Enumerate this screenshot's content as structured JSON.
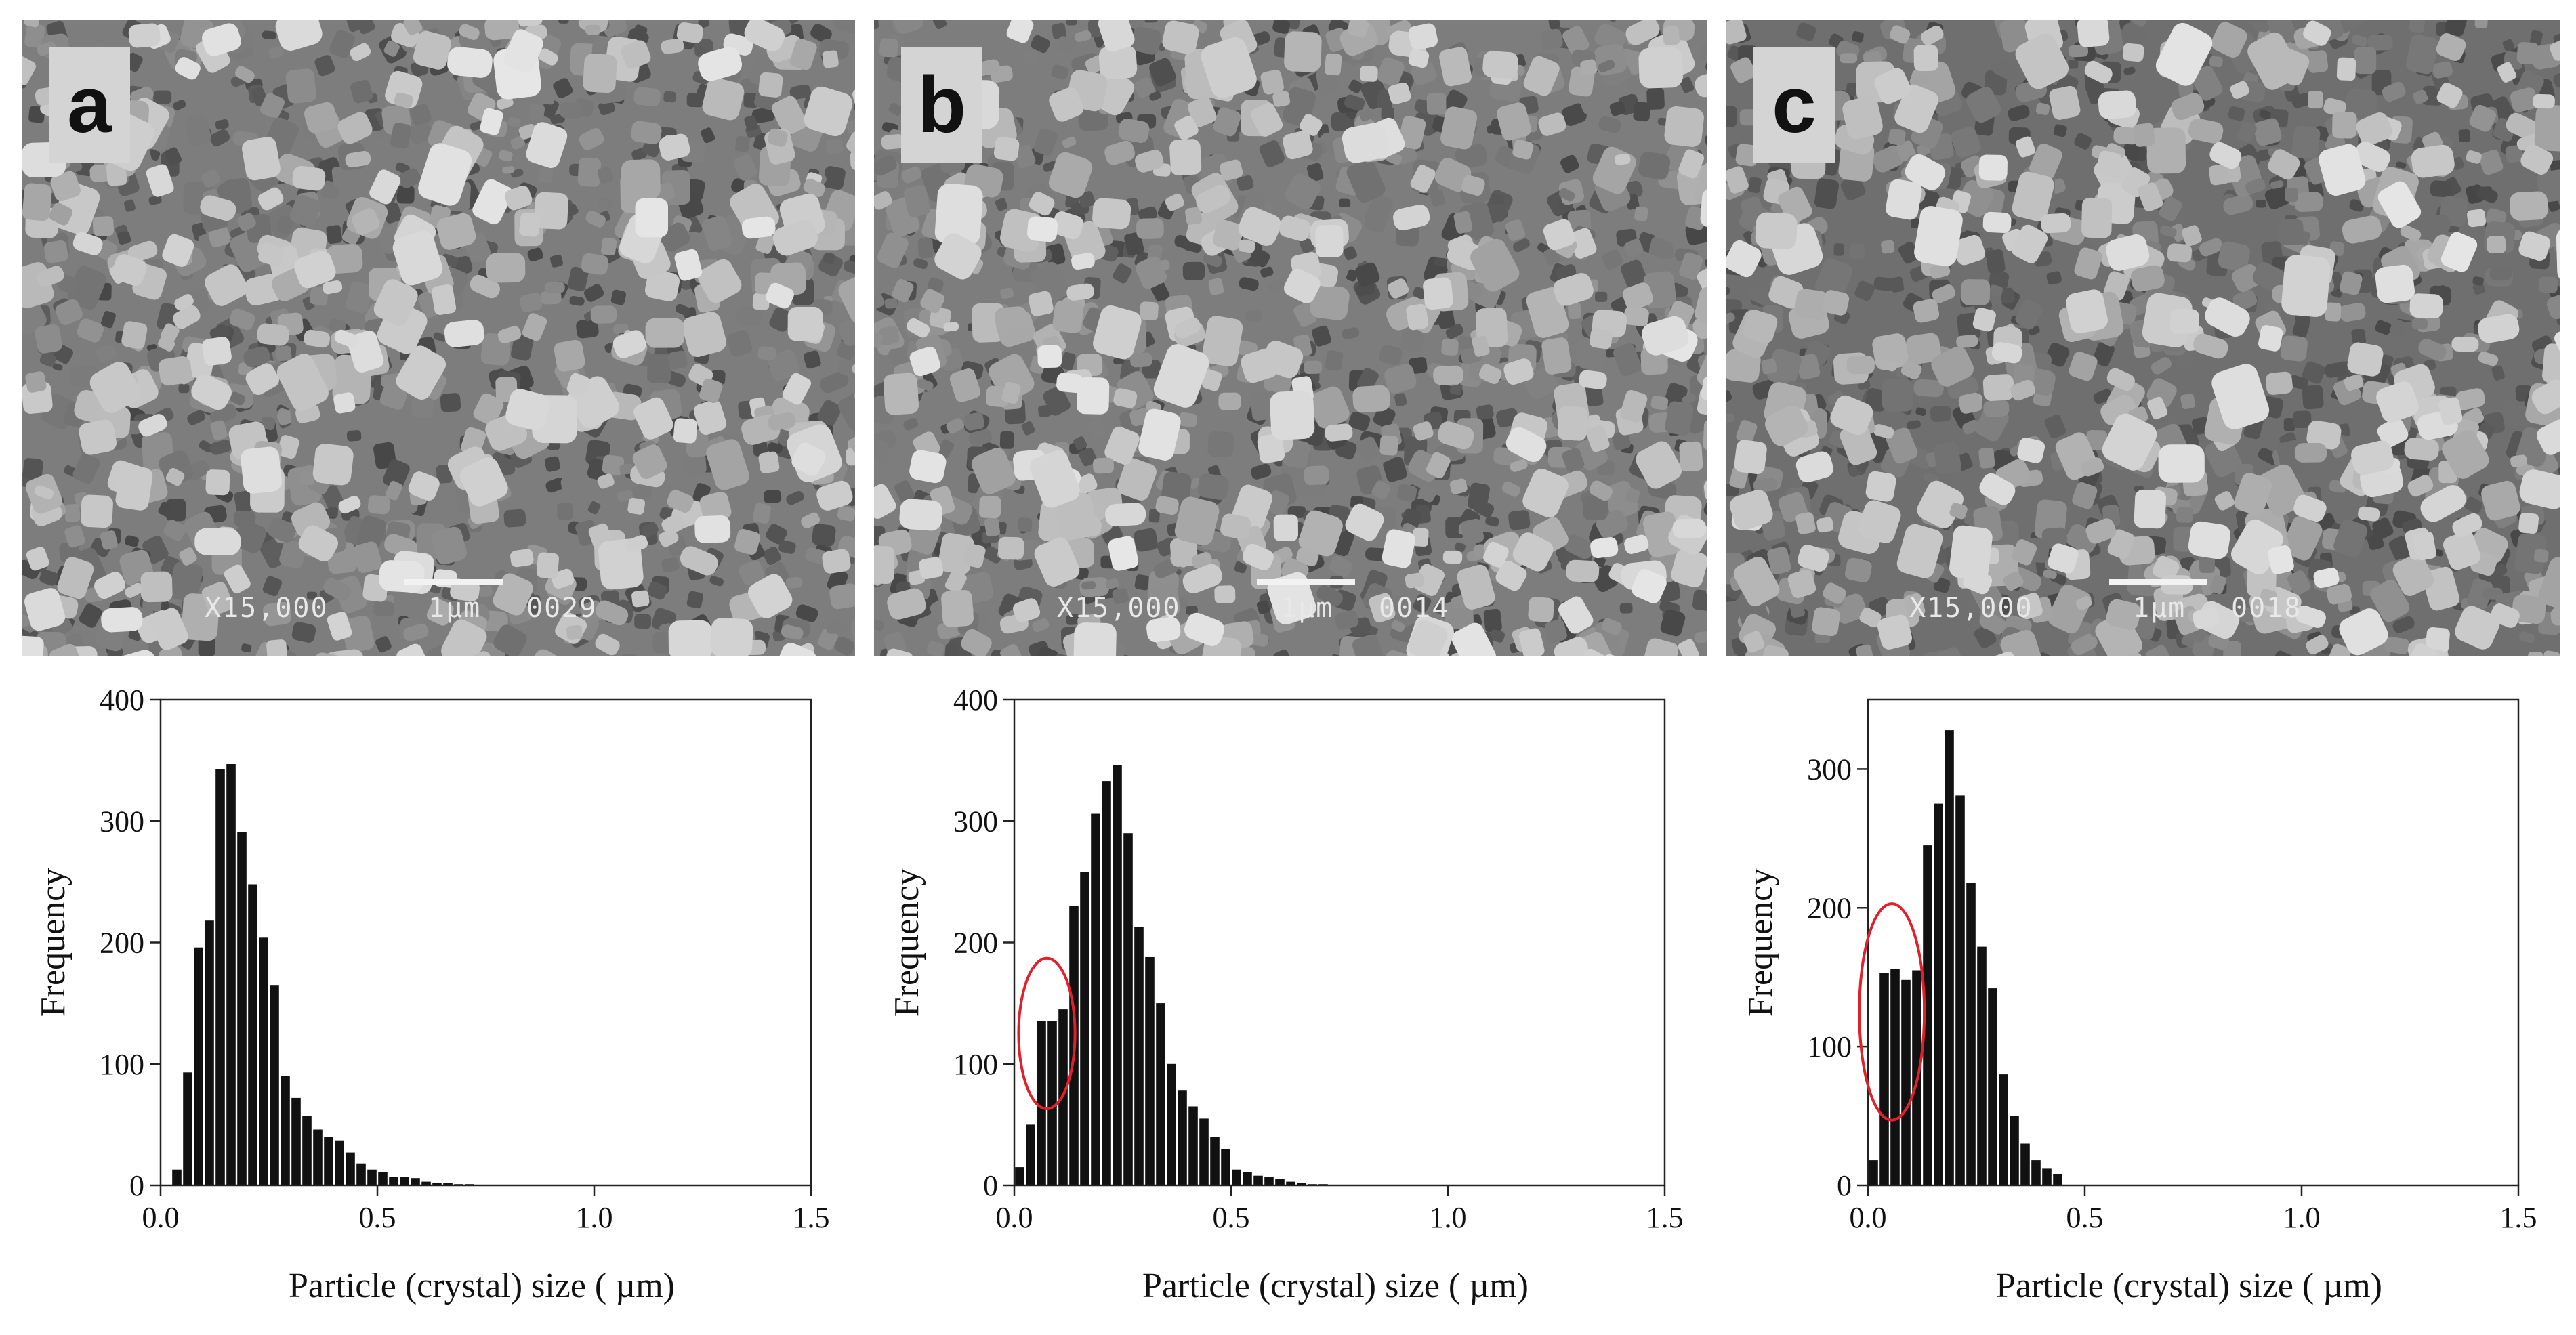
{
  "panels": [
    {
      "letter": "a",
      "sem_magnification": "X15,000",
      "sem_scale": "1µm",
      "sem_id": "0029",
      "highlight": null
    },
    {
      "letter": "b",
      "sem_magnification": "X15,000",
      "sem_scale": "1µm",
      "sem_id": "0014",
      "highlight": {
        "x_center": 0.075,
        "y_center": 125,
        "x_radius": 0.065,
        "y_radius": 62,
        "color": "#e0202a"
      }
    },
    {
      "letter": "c",
      "sem_magnification": "X15,000",
      "sem_scale": "1µm",
      "sem_id": "0018",
      "highlight": {
        "x_center": 0.055,
        "y_center": 125,
        "x_radius": 0.075,
        "y_radius": 78,
        "color": "#e0202a"
      }
    }
  ],
  "chart_data": [
    {
      "type": "bar",
      "panel": "a",
      "xlabel": "Particle (crystal) size ( µm)",
      "ylabel": "Frequency",
      "xlim": [
        0.0,
        1.5
      ],
      "ylim": [
        0,
        400
      ],
      "xticks": [
        "0.0",
        "0.5",
        "1.0",
        "1.5"
      ],
      "yticks": [
        "0",
        "100",
        "200",
        "300",
        "400"
      ],
      "bin_width": 0.025,
      "x": [
        0.0375,
        0.0625,
        0.0875,
        0.1125,
        0.1375,
        0.1625,
        0.1875,
        0.2125,
        0.2375,
        0.2625,
        0.2875,
        0.3125,
        0.3375,
        0.3625,
        0.3875,
        0.4125,
        0.4375,
        0.4625,
        0.4875,
        0.5125,
        0.5375,
        0.5625,
        0.5875,
        0.6125,
        0.6375,
        0.6625,
        0.6875,
        0.7125
      ],
      "values": [
        13,
        93,
        196,
        218,
        343,
        347,
        291,
        248,
        204,
        165,
        90,
        72,
        57,
        46,
        40,
        37,
        27,
        18,
        13,
        11,
        7,
        7,
        6,
        3,
        2,
        2,
        1,
        1
      ],
      "grid": false,
      "legend": null
    },
    {
      "type": "bar",
      "panel": "b",
      "xlabel": "Particle (crystal) size ( µm)",
      "ylabel": "Frequency",
      "xlim": [
        0.0,
        1.5
      ],
      "ylim": [
        0,
        400
      ],
      "xticks": [
        "0.0",
        "0.5",
        "1.0",
        "1.5"
      ],
      "yticks": [
        "0",
        "100",
        "200",
        "300",
        "400"
      ],
      "bin_width": 0.025,
      "x": [
        0.0125,
        0.0375,
        0.0625,
        0.0875,
        0.1125,
        0.1375,
        0.1625,
        0.1875,
        0.2125,
        0.2375,
        0.2625,
        0.2875,
        0.3125,
        0.3375,
        0.3625,
        0.3875,
        0.4125,
        0.4375,
        0.4625,
        0.4875,
        0.5125,
        0.5375,
        0.5625,
        0.5875,
        0.6125,
        0.6375,
        0.6625,
        0.6875,
        0.7125
      ],
      "values": [
        15,
        50,
        135,
        135,
        145,
        230,
        258,
        306,
        333,
        346,
        290,
        213,
        188,
        150,
        100,
        78,
        65,
        55,
        40,
        30,
        13,
        11,
        8,
        7,
        5,
        3,
        2,
        1,
        1
      ],
      "grid": false,
      "legend": null
    },
    {
      "type": "bar",
      "panel": "c",
      "xlabel": "Particle (crystal) size ( µm)",
      "ylabel": "Frequency",
      "xlim": [
        0.0,
        1.5
      ],
      "ylim": [
        0,
        350
      ],
      "xticks": [
        "0.0",
        "0.5",
        "1.0",
        "1.5"
      ],
      "yticks": [
        "0",
        "100",
        "200",
        "300"
      ],
      "bin_width": 0.025,
      "x": [
        0.0125,
        0.0375,
        0.0625,
        0.0875,
        0.1125,
        0.1375,
        0.1625,
        0.1875,
        0.2125,
        0.2375,
        0.2625,
        0.2875,
        0.3125,
        0.3375,
        0.3625,
        0.3875,
        0.4125,
        0.4375
      ],
      "values": [
        18,
        153,
        156,
        148,
        155,
        245,
        275,
        328,
        281,
        218,
        172,
        142,
        80,
        50,
        30,
        18,
        12,
        8
      ],
      "grid": false,
      "legend": null
    }
  ]
}
